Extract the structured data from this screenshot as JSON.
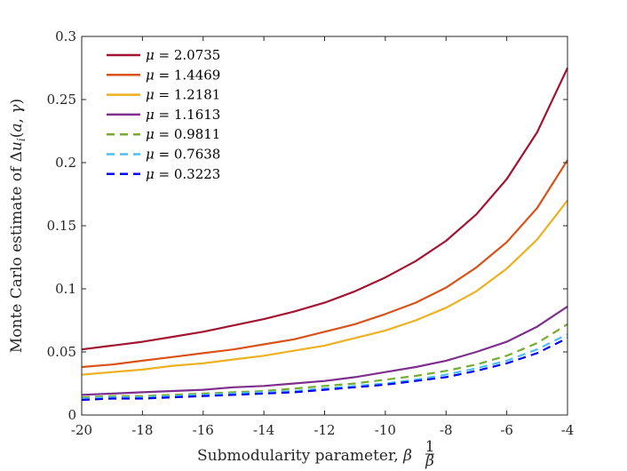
{
  "chart_data": {
    "type": "line",
    "title": "",
    "xlabel": "Submodularity parameter, 1/β",
    "ylabel": "Monte Carlo estimate of Δu_i(a, γ)",
    "xlim": [
      -20,
      -4
    ],
    "ylim": [
      0,
      0.3
    ],
    "grid": false,
    "legend_position": "top-left",
    "x_ticks": [
      -20,
      -18,
      -16,
      -14,
      -12,
      -10,
      -8,
      -6,
      -4
    ],
    "x_tick_labels": [
      "-20",
      "-18",
      "-16",
      "-14",
      "-12",
      "-10",
      "-8",
      "-6",
      "-4"
    ],
    "y_ticks": [
      0,
      0.05,
      0.1,
      0.15,
      0.2,
      0.25,
      0.3
    ],
    "y_tick_labels": [
      "0",
      "0.05",
      "0.1",
      "0.15",
      "0.2",
      "0.25",
      "0.3"
    ],
    "x": [
      -20,
      -19,
      -18,
      -17,
      -16,
      -15,
      -14,
      -13,
      -12,
      -11,
      -10,
      -9,
      -8,
      -7,
      -6,
      -5,
      -4
    ],
    "series": [
      {
        "name": "μ = 2.0735",
        "color": "#a2142f",
        "dash": false,
        "values": [
          0.052,
          0.055,
          0.058,
          0.062,
          0.066,
          0.071,
          0.076,
          0.082,
          0.089,
          0.098,
          0.109,
          0.122,
          0.138,
          0.159,
          0.187,
          0.224,
          0.275
        ]
      },
      {
        "name": "μ = 1.4469",
        "color": "#d95319",
        "dash": false,
        "values": [
          0.038,
          0.04,
          0.043,
          0.046,
          0.049,
          0.052,
          0.056,
          0.06,
          0.066,
          0.072,
          0.08,
          0.089,
          0.101,
          0.117,
          0.137,
          0.164,
          0.202
        ]
      },
      {
        "name": "μ = 1.2181",
        "color": "#edb120",
        "dash": false,
        "values": [
          0.032,
          0.034,
          0.036,
          0.039,
          0.041,
          0.044,
          0.047,
          0.051,
          0.055,
          0.061,
          0.067,
          0.075,
          0.085,
          0.098,
          0.116,
          0.139,
          0.17
        ]
      },
      {
        "name": "μ = 1.1613",
        "color": "#7e2f8e",
        "dash": false,
        "values": [
          0.016,
          0.017,
          0.018,
          0.019,
          0.02,
          0.022,
          0.023,
          0.025,
          0.027,
          0.03,
          0.034,
          0.038,
          0.043,
          0.05,
          0.058,
          0.07,
          0.086
        ]
      },
      {
        "name": "μ = 0.9811",
        "color": "#77ac30",
        "dash": true,
        "values": [
          0.014,
          0.015,
          0.015,
          0.016,
          0.017,
          0.018,
          0.019,
          0.021,
          0.023,
          0.025,
          0.028,
          0.031,
          0.035,
          0.04,
          0.047,
          0.057,
          0.072
        ]
      },
      {
        "name": "μ = 0.7638",
        "color": "#4dbeee",
        "dash": true,
        "values": [
          0.013,
          0.014,
          0.014,
          0.015,
          0.016,
          0.017,
          0.018,
          0.019,
          0.021,
          0.023,
          0.025,
          0.028,
          0.032,
          0.037,
          0.043,
          0.052,
          0.064
        ]
      },
      {
        "name": "μ = 0.3223",
        "color": "#0000ff",
        "dash": true,
        "values": [
          0.012,
          0.013,
          0.013,
          0.014,
          0.015,
          0.016,
          0.017,
          0.018,
          0.02,
          0.022,
          0.024,
          0.027,
          0.03,
          0.035,
          0.041,
          0.049,
          0.061
        ]
      }
    ]
  }
}
